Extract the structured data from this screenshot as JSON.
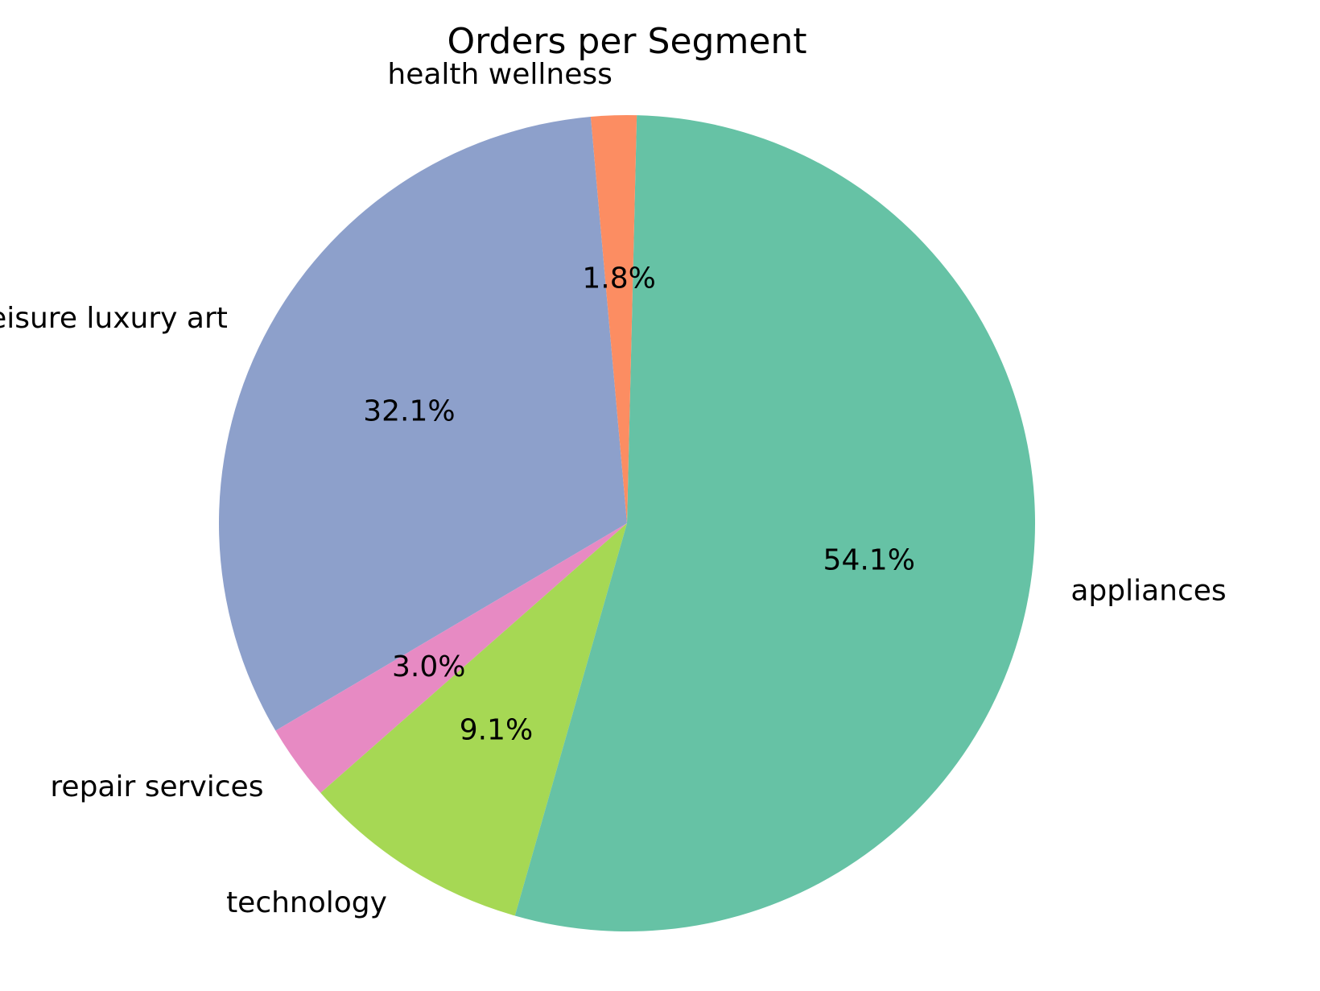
{
  "chart_data": {
    "type": "pie",
    "title": "Orders per Segment",
    "slices": [
      {
        "label": "leisure luxury art",
        "value": 32.1,
        "pct_label": "32.1%",
        "color": "#8da0cb"
      },
      {
        "label": "repair services",
        "value": 3.0,
        "pct_label": "3.0%",
        "color": "#e78ac3"
      },
      {
        "label": "technology",
        "value": 9.1,
        "pct_label": "9.1%",
        "color": "#a6d854"
      },
      {
        "label": "appliances",
        "value": 54.1,
        "pct_label": "54.1%",
        "color": "#66c2a5"
      },
      {
        "label": "health wellness",
        "value": 1.8,
        "pct_label": "1.8%",
        "color": "#fc8d62"
      }
    ],
    "legend": "none"
  }
}
